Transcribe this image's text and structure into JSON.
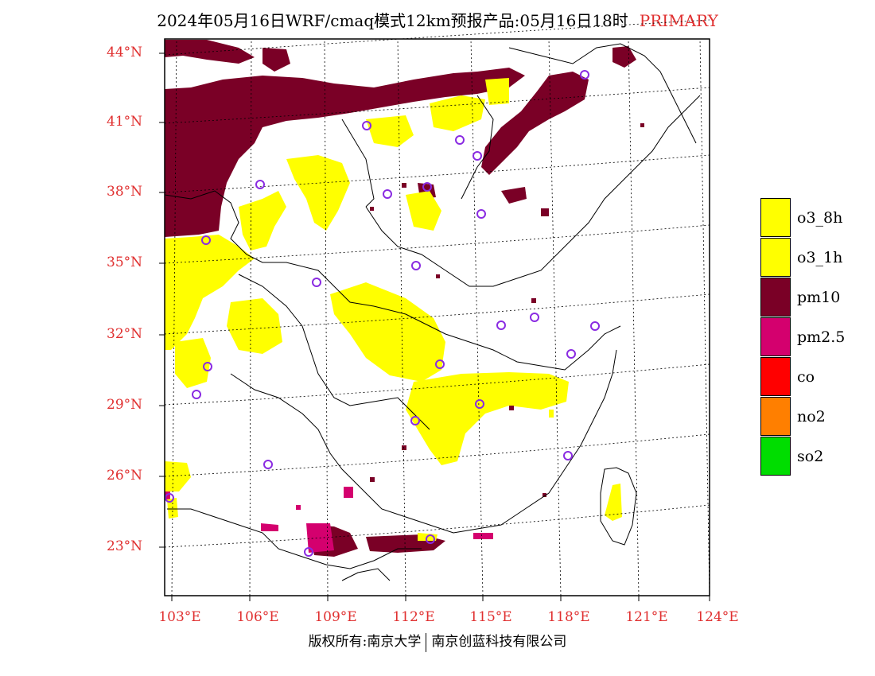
{
  "title": {
    "main": "2024年05月16日WRF/cmaq模式12km预报产品:05月16日18时",
    "tag": "PRIMARY"
  },
  "lat_labels": [
    "44°N",
    "41°N",
    "38°N",
    "35°N",
    "32°N",
    "29°N",
    "26°N",
    "23°N"
  ],
  "lon_labels": [
    "103°E",
    "106°E",
    "109°E",
    "112°E",
    "115°E",
    "118°E",
    "121°E",
    "124°E"
  ],
  "legend": [
    {
      "label": "o3_8h",
      "color": "#ffff00"
    },
    {
      "label": "o3_1h",
      "color": "#ffff00"
    },
    {
      "label": "pm10",
      "color": "#7a0026"
    },
    {
      "label": "pm2.5",
      "color": "#d4006e"
    },
    {
      "label": "co",
      "color": "#ff0000"
    },
    {
      "label": "no2",
      "color": "#ff7f00"
    },
    {
      "label": "so2",
      "color": "#00dd00"
    }
  ],
  "footer": {
    "left": "版权所有:南京大学",
    "right": "南京创蓝科技有限公司"
  },
  "colors": {
    "label_red": "#e03030",
    "station_circle": "#8a2be2"
  }
}
